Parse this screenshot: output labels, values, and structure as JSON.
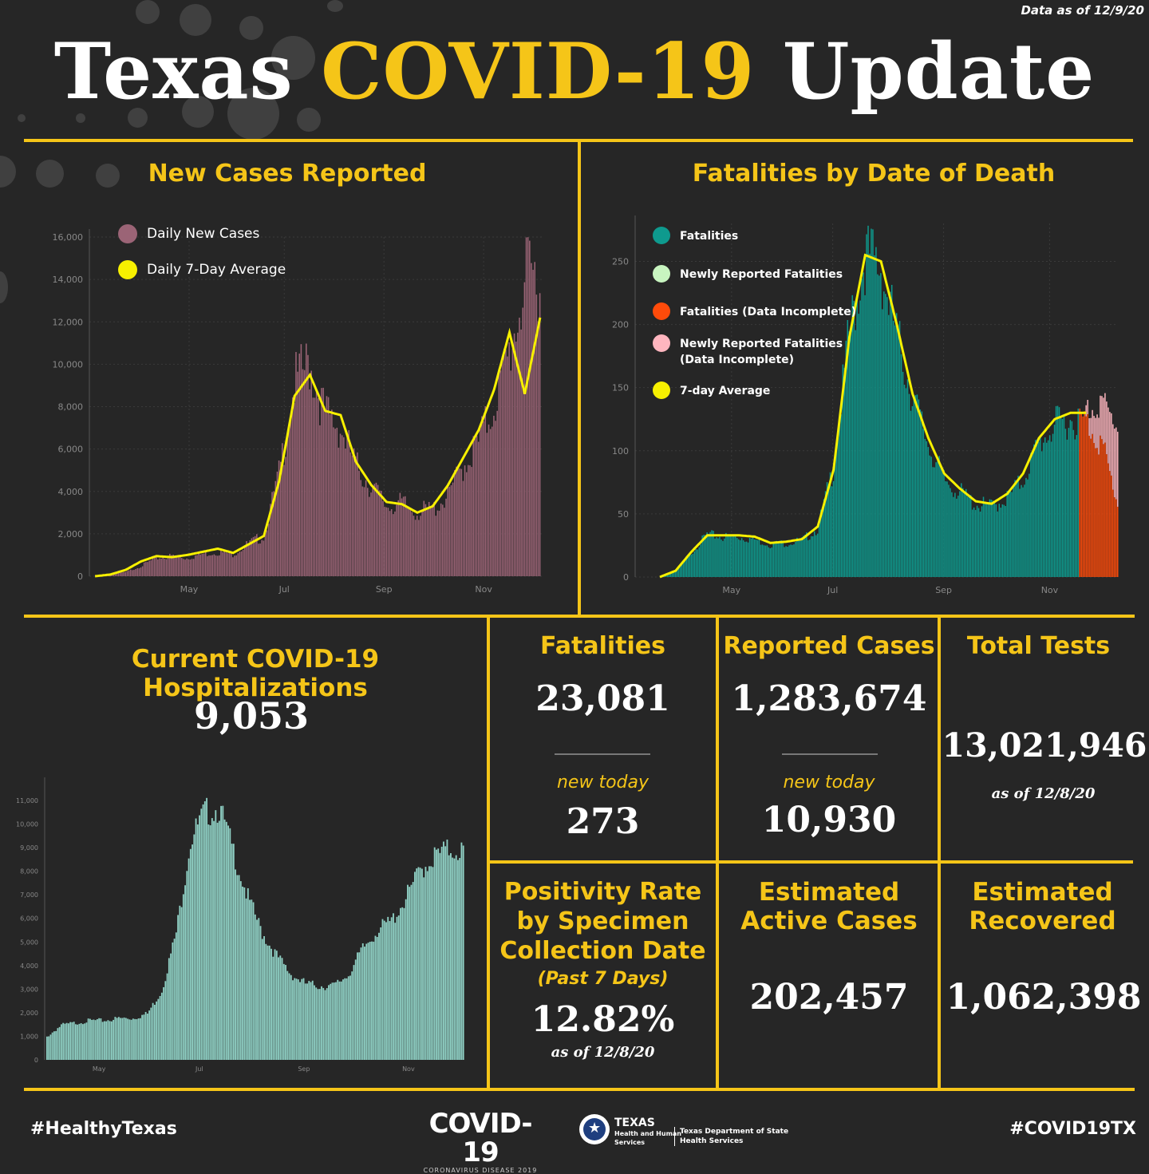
{
  "header": {
    "date": "Data as of 12/9/20",
    "title_a": "Texas ",
    "title_b": "COVID-19",
    "title_c": " Update"
  },
  "colors": {
    "accent": "#f5c518",
    "cases_bar": "#9b6476",
    "avg_line": "#f7f000",
    "fatal_bar": "#0e9a8e",
    "fatal_incomplete": "#ff4b0a",
    "newly_incomplete": "#ffb6bf",
    "hosp_bar": "#8fd0c4"
  },
  "new_cases": {
    "title": "New Cases Reported",
    "legend": [
      "Daily New Cases",
      "Daily 7-Day Average"
    ],
    "chart_data": {
      "type": "bar",
      "xticks": [
        "May",
        "Jul",
        "Sep",
        "Nov"
      ],
      "yticks": [
        "0",
        "2,000",
        "4,000",
        "6,000",
        "8,000",
        "10,000",
        "12,000",
        "14,000",
        "16,000"
      ],
      "ylim": [
        0,
        16000
      ],
      "series": [
        {
          "name": "Daily New Cases",
          "values": [
            0,
            100,
            200,
            500,
            900,
            1000,
            900,
            1100,
            1200,
            1100,
            1600,
            2000,
            5000,
            9500,
            10600,
            8000,
            7400,
            5500,
            4500,
            3500,
            3600,
            3200,
            3300,
            4000,
            5500,
            6600,
            8500,
            11000,
            14500,
            15000
          ]
        },
        {
          "name": "Daily 7-Day Average",
          "values": [
            0,
            80,
            300,
            700,
            950,
            900,
            1000,
            1150,
            1300,
            1100,
            1500,
            1900,
            4500,
            8500,
            9500,
            7800,
            7600,
            5400,
            4300,
            3500,
            3400,
            3000,
            3300,
            4300,
            5600,
            6900,
            8800,
            11500,
            8600,
            12200
          ]
        }
      ]
    }
  },
  "fatalities_chart": {
    "title": "Fatalities by Date of Death",
    "legend": [
      "Fatalities",
      "Newly Reported Fatalities",
      "Fatalities (Data Incomplete)",
      "Newly Reported Fatalities",
      "(Data Incomplete)",
      "7-day Average"
    ],
    "chart_data": {
      "type": "bar",
      "xticks": [
        "May",
        "Jul",
        "Sep",
        "Nov"
      ],
      "yticks": [
        "0",
        "50",
        "100",
        "150",
        "200",
        "250"
      ],
      "ylim": [
        0,
        280
      ],
      "series": [
        {
          "name": "Fatalities",
          "values": [
            0,
            5,
            20,
            35,
            33,
            33,
            31,
            27,
            28,
            30,
            40,
            90,
            200,
            265,
            255,
            200,
            150,
            110,
            80,
            70,
            60,
            58,
            65,
            80,
            110,
            125,
            130,
            128,
            110,
            60
          ]
        },
        {
          "name": "7-day Average",
          "values": [
            0,
            5,
            20,
            33,
            33,
            33,
            32,
            27,
            28,
            30,
            40,
            85,
            190,
            255,
            250,
            200,
            145,
            110,
            82,
            70,
            60,
            58,
            66,
            82,
            110,
            125,
            130,
            130,
            120,
            60
          ]
        }
      ]
    }
  },
  "hospitalizations": {
    "title": "Current COVID-19 Hospitalizations",
    "value": "9,053",
    "chart_data": {
      "type": "bar",
      "xticks": [
        "May",
        "Jul",
        "Sep",
        "Nov"
      ],
      "yticks": [
        "0",
        "1,000",
        "2,000",
        "3,000",
        "4,000",
        "5,000",
        "6,000",
        "7,000",
        "8,000",
        "9,000",
        "10,000",
        "11,000"
      ],
      "ylim": [
        0,
        11000
      ],
      "values": [
        1000,
        1500,
        1600,
        1700,
        1700,
        1800,
        1800,
        2000,
        3000,
        5500,
        9500,
        10700,
        10900,
        9000,
        7000,
        5500,
        4500,
        3700,
        3300,
        3200,
        3200,
        3700,
        4800,
        5600,
        6000,
        7000,
        8200,
        8800,
        9100,
        9053
      ]
    }
  },
  "fatalities": {
    "label": "Fatalities",
    "value": "23,081",
    "new_label": "new today",
    "new_value": "273"
  },
  "reported_cases": {
    "label": "Reported Cases",
    "value": "1,283,674",
    "new_label": "new today",
    "new_value": "10,930"
  },
  "total_tests": {
    "label": "Total Tests",
    "value": "13,021,946",
    "asof": "as of 12/8/20"
  },
  "positivity": {
    "l1": "Positivity Rate",
    "l2": "by Specimen",
    "l3": "Collection Date",
    "l4": "(Past 7 Days)",
    "value": "12.82%",
    "asof": "as of 12/8/20"
  },
  "active": {
    "l1": "Estimated",
    "l2": "Active Cases",
    "value": "202,457"
  },
  "recovered": {
    "l1": "Estimated",
    "l2": "Recovered",
    "value": "1,062,398"
  },
  "footer": {
    "left": "#HealthyTexas",
    "right": "#COVID19TX",
    "logo_main": "COVID-19",
    "logo_sub": "CORONAVIRUS DISEASE 2019",
    "agency1": "TEXAS",
    "agency2": "Health and Human",
    "agency3": "Services",
    "agency4": "Texas Department of State",
    "agency5": "Health Services"
  }
}
